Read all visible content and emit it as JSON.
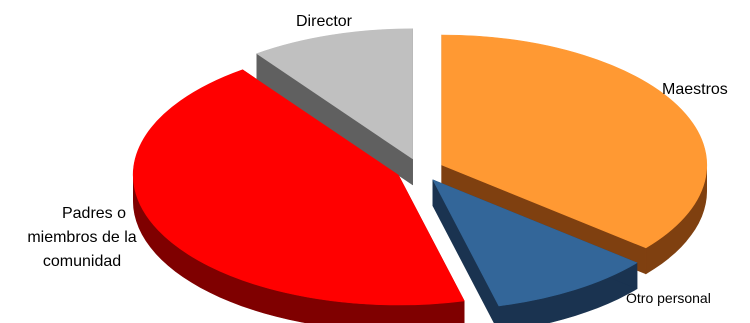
{
  "chart_data": {
    "type": "pie",
    "style": "3d-exploded",
    "title": "",
    "legend": "none",
    "slices": [
      {
        "label": "Maestros",
        "value": 36,
        "color": "#FF9933",
        "side_color": "#7F4010"
      },
      {
        "label": "Otro personal",
        "value": 10,
        "color": "#336699",
        "side_color": "#1A3350"
      },
      {
        "label": "Padres o miembros de la comunidad",
        "value": 44,
        "color": "#FF0000",
        "side_color": "#7F0000"
      },
      {
        "label": "Director",
        "value": 10,
        "color": "#C0C0C0",
        "side_color": "#606060"
      }
    ],
    "label_lines": [
      [
        "Maestros"
      ],
      [
        "Otro personal"
      ],
      [
        "Padres o",
        "miembros de la",
        "comunidad"
      ],
      [
        "Director"
      ]
    ]
  }
}
